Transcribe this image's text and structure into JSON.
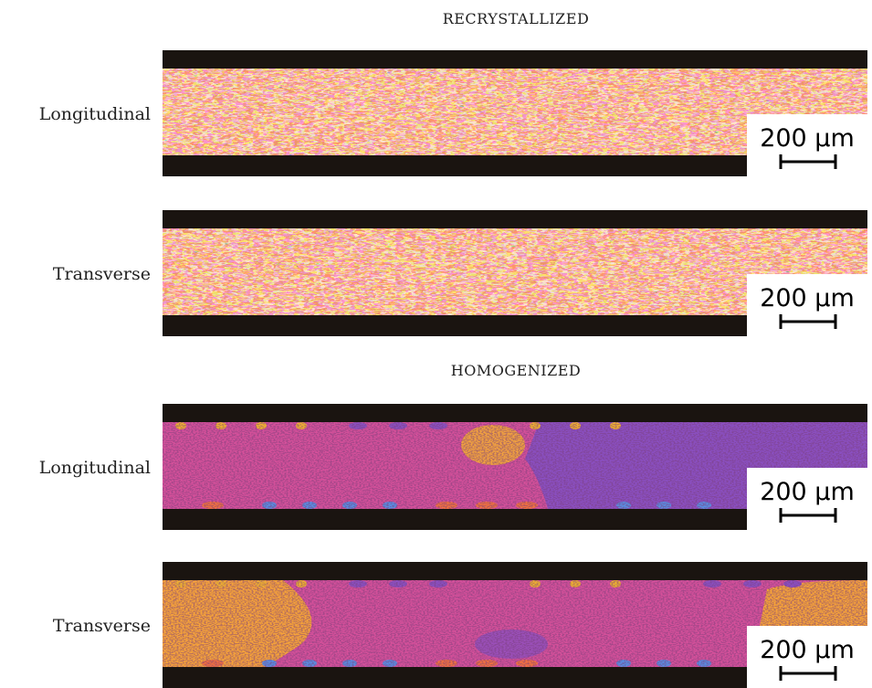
{
  "sections": [
    {
      "title": "RECRYSTALLIZED",
      "rows": [
        {
          "label": "Longitudinal",
          "scale": "200 µm"
        },
        {
          "label": "Transverse",
          "scale": "200 µm"
        }
      ]
    },
    {
      "title": "HOMOGENIZED",
      "rows": [
        {
          "label": "Longitudinal",
          "scale": "200 µm"
        },
        {
          "label": "Transverse",
          "scale": "200 µm"
        }
      ]
    }
  ]
}
